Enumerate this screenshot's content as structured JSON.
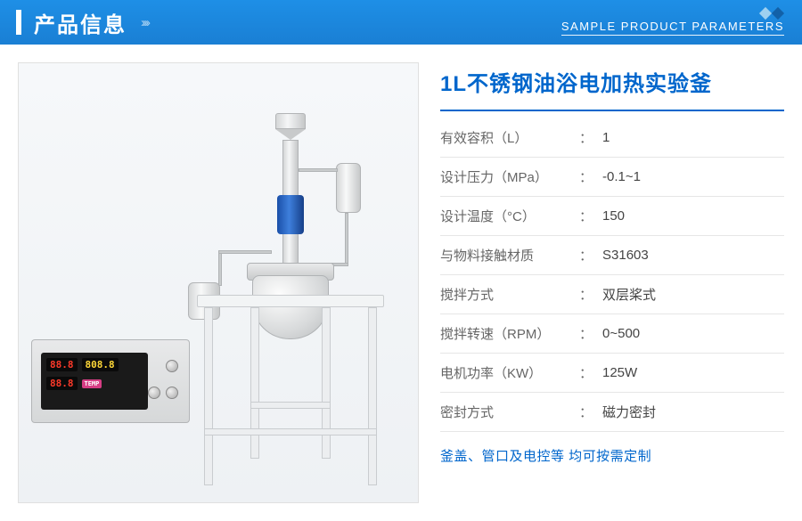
{
  "header": {
    "title": "产品信息",
    "subtitle": "SAMPLE PRODUCT PARAMETERS",
    "arrows": "››››"
  },
  "product": {
    "title": "1L不锈钢油浴电加热实验釜",
    "footer": "釜盖、管口及电控等 均可按需定制"
  },
  "specs": [
    {
      "label": "有效容积（L）",
      "value": "1"
    },
    {
      "label": "设计压力（MPa）",
      "value": "-0.1~1"
    },
    {
      "label": "设计温度（°C）",
      "value": "150"
    },
    {
      "label": "与物料接触材质",
      "value": "S31603"
    },
    {
      "label": "搅拌方式",
      "value": "双层桨式"
    },
    {
      "label": "搅拌转速（RPM）",
      "value": "0~500"
    },
    {
      "label": "电机功率（KW）",
      "value": "125W"
    },
    {
      "label": "密封方式",
      "value": "磁力密封"
    }
  ],
  "controller": {
    "seg1": "88.8",
    "seg2": "808.8",
    "seg3": "88.8",
    "tag": "TEMP"
  },
  "colors": {
    "primary": "#0066cc",
    "headerBg": "#1e8fe6",
    "border": "#e6e6e6"
  }
}
